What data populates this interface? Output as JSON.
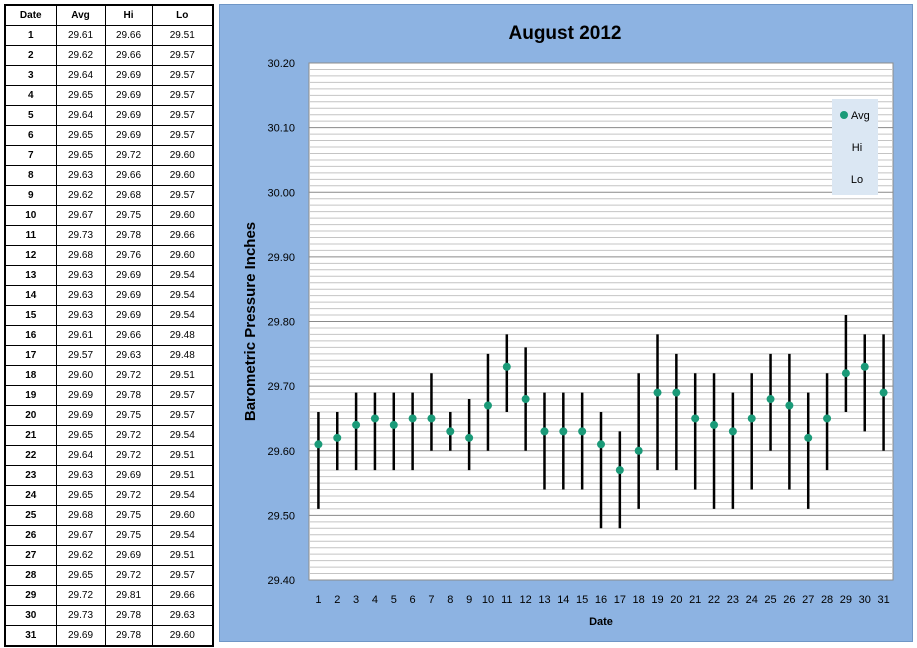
{
  "table": {
    "headers": [
      "Date",
      "Avg",
      "Hi",
      "Lo"
    ],
    "rows": [
      [
        "1",
        "29.61",
        "29.66",
        "29.51"
      ],
      [
        "2",
        "29.62",
        "29.66",
        "29.57"
      ],
      [
        "3",
        "29.64",
        "29.69",
        "29.57"
      ],
      [
        "4",
        "29.65",
        "29.69",
        "29.57"
      ],
      [
        "5",
        "29.64",
        "29.69",
        "29.57"
      ],
      [
        "6",
        "29.65",
        "29.69",
        "29.57"
      ],
      [
        "7",
        "29.65",
        "29.72",
        "29.60"
      ],
      [
        "8",
        "29.63",
        "29.66",
        "29.60"
      ],
      [
        "9",
        "29.62",
        "29.68",
        "29.57"
      ],
      [
        "10",
        "29.67",
        "29.75",
        "29.60"
      ],
      [
        "11",
        "29.73",
        "29.78",
        "29.66"
      ],
      [
        "12",
        "29.68",
        "29.76",
        "29.60"
      ],
      [
        "13",
        "29.63",
        "29.69",
        "29.54"
      ],
      [
        "14",
        "29.63",
        "29.69",
        "29.54"
      ],
      [
        "15",
        "29.63",
        "29.69",
        "29.54"
      ],
      [
        "16",
        "29.61",
        "29.66",
        "29.48"
      ],
      [
        "17",
        "29.57",
        "29.63",
        "29.48"
      ],
      [
        "18",
        "29.60",
        "29.72",
        "29.51"
      ],
      [
        "19",
        "29.69",
        "29.78",
        "29.57"
      ],
      [
        "20",
        "29.69",
        "29.75",
        "29.57"
      ],
      [
        "21",
        "29.65",
        "29.72",
        "29.54"
      ],
      [
        "22",
        "29.64",
        "29.72",
        "29.51"
      ],
      [
        "23",
        "29.63",
        "29.69",
        "29.51"
      ],
      [
        "24",
        "29.65",
        "29.72",
        "29.54"
      ],
      [
        "25",
        "29.68",
        "29.75",
        "29.60"
      ],
      [
        "26",
        "29.67",
        "29.75",
        "29.54"
      ],
      [
        "27",
        "29.62",
        "29.69",
        "29.51"
      ],
      [
        "28",
        "29.65",
        "29.72",
        "29.57"
      ],
      [
        "29",
        "29.72",
        "29.81",
        "29.66"
      ],
      [
        "30",
        "29.73",
        "29.78",
        "29.63"
      ],
      [
        "31",
        "29.69",
        "29.78",
        "29.60"
      ]
    ]
  },
  "chart_data": {
    "type": "scatter",
    "title": "August 2012",
    "xlabel": "Date",
    "ylabel": "Barometric Pressure Inches",
    "x": [
      1,
      2,
      3,
      4,
      5,
      6,
      7,
      8,
      9,
      10,
      11,
      12,
      13,
      14,
      15,
      16,
      17,
      18,
      19,
      20,
      21,
      22,
      23,
      24,
      25,
      26,
      27,
      28,
      29,
      30,
      31
    ],
    "ylim": [
      29.4,
      30.2
    ],
    "yticks": [
      "29.40",
      "29.50",
      "29.60",
      "29.70",
      "29.80",
      "29.90",
      "30.00",
      "30.10",
      "30.20"
    ],
    "grid": true,
    "legend_position": "top-right",
    "series": [
      {
        "name": "Avg",
        "color": "#1a9a78",
        "values": [
          29.61,
          29.62,
          29.64,
          29.65,
          29.64,
          29.65,
          29.65,
          29.63,
          29.62,
          29.67,
          29.73,
          29.68,
          29.63,
          29.63,
          29.63,
          29.61,
          29.57,
          29.6,
          29.69,
          29.69,
          29.65,
          29.64,
          29.63,
          29.65,
          29.68,
          29.67,
          29.62,
          29.65,
          29.72,
          29.73,
          29.69
        ]
      },
      {
        "name": "Hi",
        "color": "#000000",
        "values": [
          29.66,
          29.66,
          29.69,
          29.69,
          29.69,
          29.69,
          29.72,
          29.66,
          29.68,
          29.75,
          29.78,
          29.76,
          29.69,
          29.69,
          29.69,
          29.66,
          29.63,
          29.72,
          29.78,
          29.75,
          29.72,
          29.72,
          29.69,
          29.72,
          29.75,
          29.75,
          29.69,
          29.72,
          29.81,
          29.78,
          29.78
        ]
      },
      {
        "name": "Lo",
        "color": "#000000",
        "values": [
          29.51,
          29.57,
          29.57,
          29.57,
          29.57,
          29.57,
          29.6,
          29.6,
          29.57,
          29.6,
          29.66,
          29.6,
          29.54,
          29.54,
          29.54,
          29.48,
          29.48,
          29.51,
          29.57,
          29.57,
          29.54,
          29.51,
          29.51,
          29.54,
          29.6,
          29.54,
          29.51,
          29.57,
          29.66,
          29.63,
          29.6
        ]
      }
    ]
  }
}
